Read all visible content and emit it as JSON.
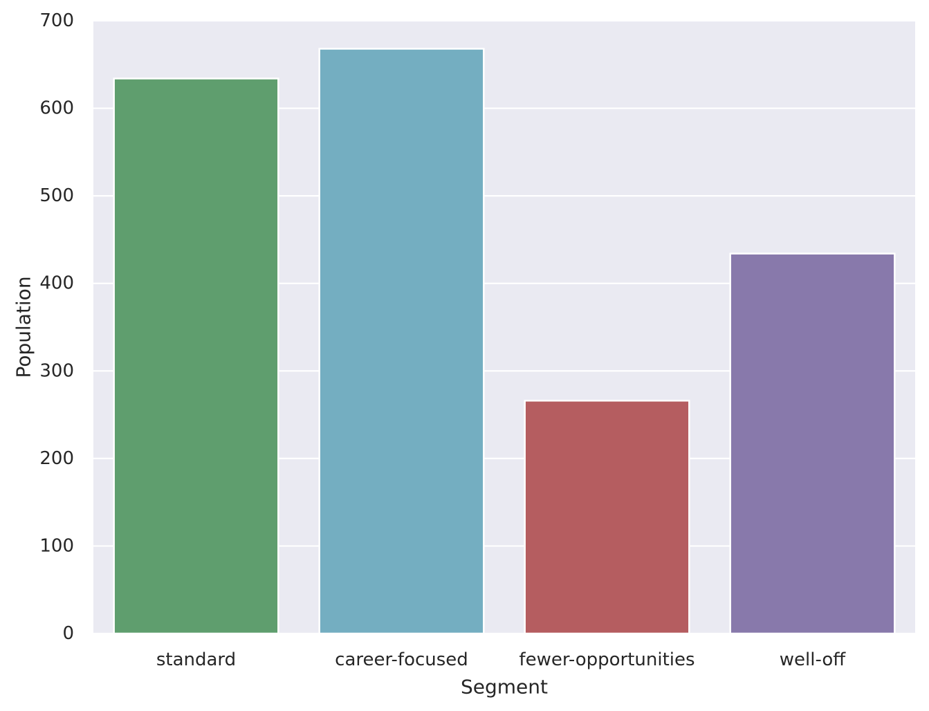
{
  "chart_data": {
    "type": "bar",
    "title": "",
    "xlabel": "Segment",
    "ylabel": "Population",
    "categories": [
      "standard",
      "career-focused",
      "fewer-opportunities",
      "well-off"
    ],
    "values": [
      634,
      668,
      266,
      434
    ],
    "colors": [
      "#5f9e6e",
      "#74aec1",
      "#b55d60",
      "#8879ab"
    ],
    "ylim": [
      0,
      700
    ],
    "yticks": [
      0,
      100,
      200,
      300,
      400,
      500,
      600,
      700
    ],
    "grid": true,
    "legend": "none",
    "background": "#eaeaf2",
    "grid_color": "#ffffff"
  }
}
